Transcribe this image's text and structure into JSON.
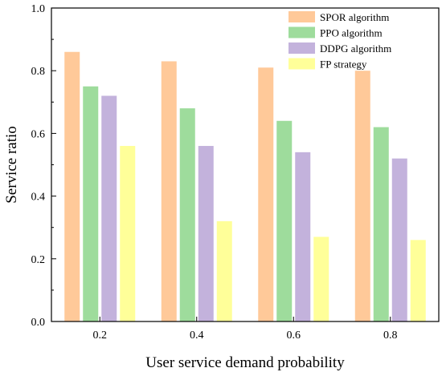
{
  "chart_data": {
    "type": "bar",
    "xlabel": "User service demand probability",
    "ylabel": "Service ratio",
    "ylim": [
      0,
      1.0
    ],
    "yticks": [
      "0.0",
      "0.2",
      "0.4",
      "0.6",
      "0.8",
      "1.0"
    ],
    "categories": [
      "0.2",
      "0.4",
      "0.6",
      "0.8"
    ],
    "legend_position": "top-right",
    "grid": false,
    "series": [
      {
        "name": "SPOR algorithm",
        "color": "#FFC999",
        "values": [
          0.86,
          0.83,
          0.81,
          0.8
        ]
      },
      {
        "name": "PPO algorithm",
        "color": "#9EDC9C",
        "values": [
          0.75,
          0.68,
          0.64,
          0.62
        ]
      },
      {
        "name": "DDPG algorithm",
        "color": "#C3B2DC",
        "values": [
          0.72,
          0.56,
          0.54,
          0.52
        ]
      },
      {
        "name": "FP strategy",
        "color": "#FFFF99",
        "values": [
          0.56,
          0.32,
          0.27,
          0.26
        ]
      }
    ]
  }
}
